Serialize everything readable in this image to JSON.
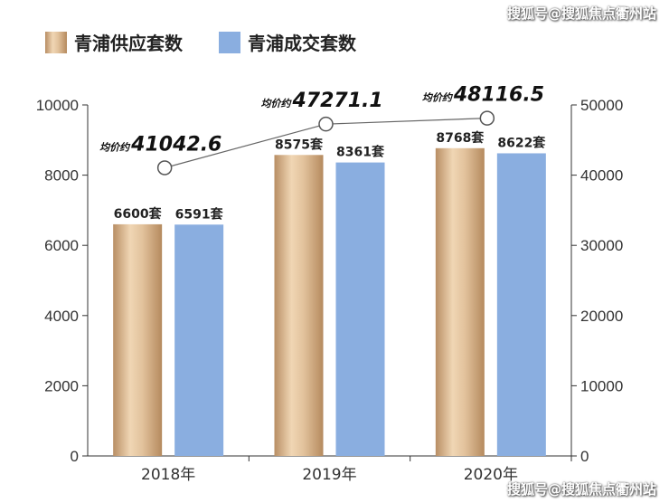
{
  "watermark_top": "搜狐号@搜狐焦点衢州站",
  "watermark_bottom": "搜狐号@搜狐焦点衢州站",
  "chart_data": {
    "type": "bar",
    "categories": [
      "2018年",
      "2019年",
      "2020年"
    ],
    "series": [
      {
        "name": "青浦供应套数",
        "values": [
          6600,
          8575,
          8768
        ],
        "labels": [
          "6600套",
          "8575套",
          "8768套"
        ],
        "color": "#d2aa82",
        "axis": "left"
      },
      {
        "name": "青浦成交套数",
        "values": [
          6591,
          8361,
          8622
        ],
        "labels": [
          "6591套",
          "8361套",
          "8622套"
        ],
        "color": "#8aaee0",
        "axis": "left"
      }
    ],
    "line_series": {
      "type": "line",
      "axis": "right",
      "values": [
        41042.6,
        47271.1,
        48116.5
      ],
      "prefix": "均价约",
      "labels": [
        "41042.6",
        "47271.1",
        "48116.5"
      ],
      "color": "#666666"
    },
    "left_axis": {
      "min": 0,
      "max": 10000,
      "ticks": [
        0,
        2000,
        4000,
        6000,
        8000,
        10000
      ]
    },
    "right_axis": {
      "min": 0,
      "max": 50000,
      "ticks": [
        0,
        10000,
        20000,
        30000,
        40000,
        50000
      ]
    },
    "legend_position": "top-left",
    "grid": false
  }
}
